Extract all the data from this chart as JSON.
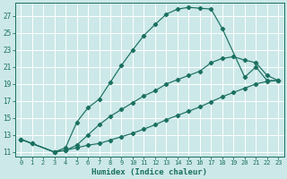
{
  "xlabel": "Humidex (Indice chaleur)",
  "bg_color": "#cce8e8",
  "grid_color": "#b0d8d8",
  "line_color": "#1a7060",
  "xlim": [
    -0.5,
    23.5
  ],
  "ylim": [
    10.5,
    28.5
  ],
  "yticks": [
    11,
    13,
    15,
    17,
    19,
    21,
    23,
    25,
    27
  ],
  "xticks": [
    0,
    1,
    2,
    3,
    4,
    5,
    6,
    7,
    8,
    9,
    10,
    11,
    12,
    13,
    14,
    15,
    16,
    17,
    18,
    19,
    20,
    21,
    22,
    23
  ],
  "curve1_x": [
    0,
    1,
    3,
    4,
    5,
    6,
    7,
    8,
    9,
    10,
    11,
    12,
    13,
    14,
    15,
    16,
    17,
    18,
    20,
    21,
    22,
    23
  ],
  "curve1_y": [
    12.5,
    12.0,
    11.0,
    11.5,
    14.5,
    16.2,
    17.2,
    19.2,
    21.2,
    23.0,
    24.7,
    26.0,
    27.2,
    27.8,
    28.0,
    27.9,
    27.8,
    25.5,
    19.8,
    21.0,
    19.4,
    19.4
  ],
  "curve2_x": [
    0,
    1,
    3,
    4,
    5,
    6,
    7,
    8,
    9,
    10,
    11,
    12,
    13,
    14,
    15,
    16,
    17,
    18,
    19,
    20,
    21,
    22,
    23
  ],
  "curve2_y": [
    12.5,
    12.0,
    11.0,
    11.2,
    11.8,
    13.0,
    14.2,
    15.2,
    16.0,
    16.8,
    17.6,
    18.2,
    19.0,
    19.5,
    20.0,
    20.5,
    21.5,
    22.0,
    22.2,
    21.8,
    21.5,
    20.0,
    19.4
  ],
  "curve3_x": [
    0,
    1,
    3,
    4,
    5,
    6,
    7,
    8,
    9,
    10,
    11,
    12,
    13,
    14,
    15,
    16,
    17,
    18,
    19,
    20,
    21,
    22,
    23
  ],
  "curve3_y": [
    12.5,
    12.0,
    11.0,
    11.2,
    11.5,
    11.8,
    12.0,
    12.4,
    12.8,
    13.2,
    13.7,
    14.2,
    14.8,
    15.3,
    15.8,
    16.3,
    16.9,
    17.5,
    18.0,
    18.5,
    19.0,
    19.3,
    19.4
  ]
}
